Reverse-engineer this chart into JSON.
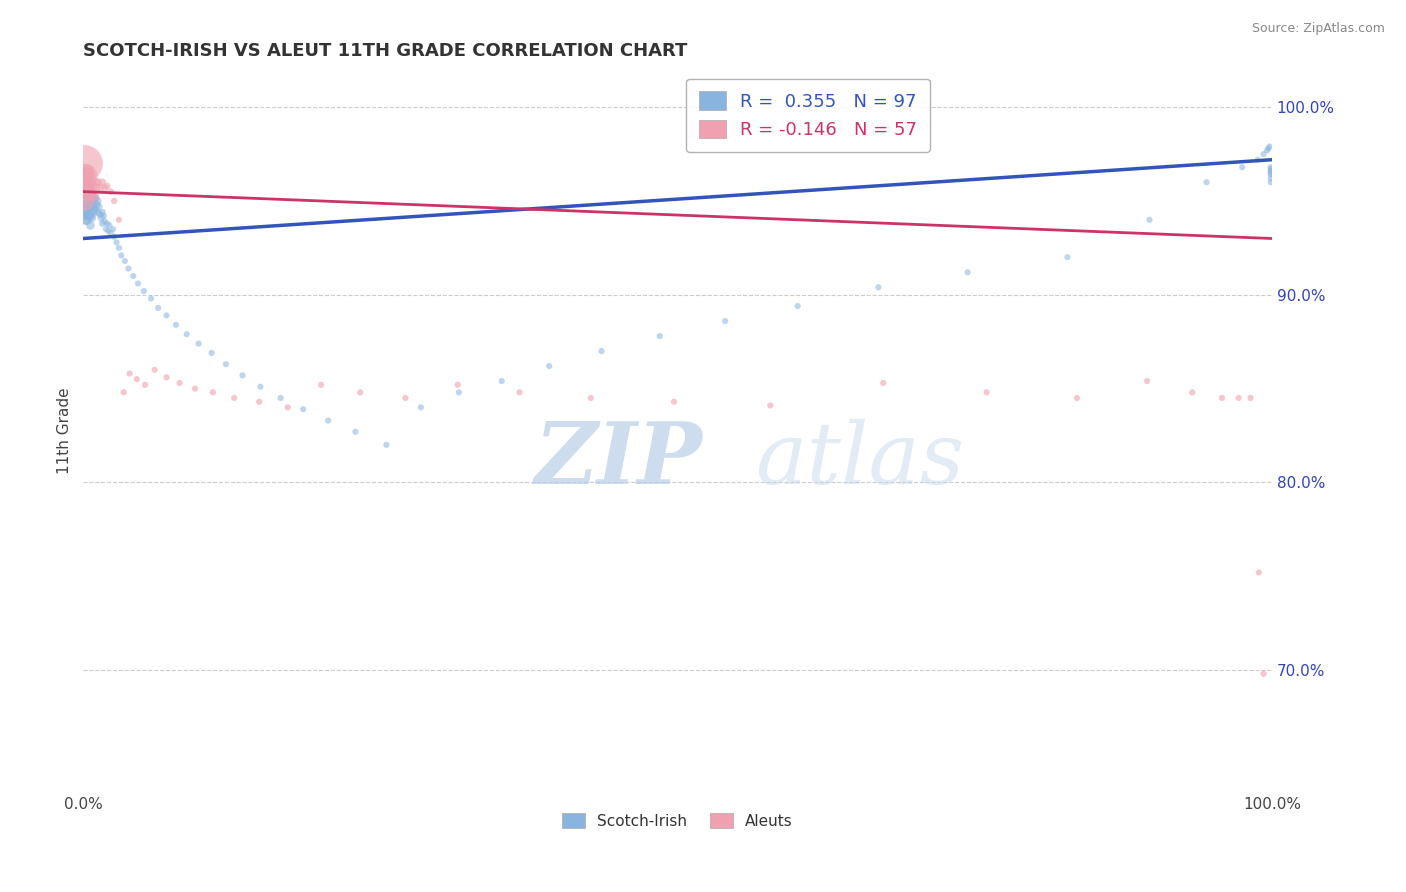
{
  "title": "SCOTCH-IRISH VS ALEUT 11TH GRADE CORRELATION CHART",
  "source_text": "Source: ZipAtlas.com",
  "ylabel": "11th Grade",
  "xlim": [
    0.0,
    1.0
  ],
  "ylim": [
    0.635,
    1.02
  ],
  "right_yticks": [
    0.7,
    0.8,
    0.9,
    1.0
  ],
  "right_yticklabels": [
    "70.0%",
    "80.0%",
    "90.0%",
    "100.0%"
  ],
  "xticks": [
    0.0,
    1.0
  ],
  "xticklabels": [
    "0.0%",
    "100.0%"
  ],
  "blue_color": "#8ab4e0",
  "pink_color": "#f0a0b0",
  "blue_line_color": "#3355bb",
  "pink_line_color": "#cc3366",
  "legend_blue_label": "R =  0.355   N = 97",
  "legend_pink_label": "R = -0.146   N = 57",
  "scotch_irish_label": "Scotch-Irish",
  "aleuts_label": "Aleuts",
  "watermark_zip": "ZIP",
  "watermark_atlas": "atlas",
  "blue_scatter_x": [
    0.001,
    0.001,
    0.001,
    0.002,
    0.002,
    0.002,
    0.002,
    0.003,
    0.003,
    0.003,
    0.003,
    0.004,
    0.004,
    0.004,
    0.004,
    0.005,
    0.005,
    0.005,
    0.006,
    0.006,
    0.006,
    0.006,
    0.007,
    0.007,
    0.007,
    0.008,
    0.008,
    0.009,
    0.009,
    0.01,
    0.01,
    0.011,
    0.012,
    0.012,
    0.013,
    0.014,
    0.015,
    0.016,
    0.016,
    0.017,
    0.018,
    0.019,
    0.02,
    0.021,
    0.022,
    0.023,
    0.025,
    0.026,
    0.028,
    0.03,
    0.032,
    0.035,
    0.038,
    0.042,
    0.046,
    0.051,
    0.057,
    0.063,
    0.07,
    0.078,
    0.087,
    0.097,
    0.108,
    0.12,
    0.134,
    0.149,
    0.166,
    0.185,
    0.206,
    0.229,
    0.255,
    0.284,
    0.316,
    0.352,
    0.392,
    0.436,
    0.485,
    0.54,
    0.601,
    0.669,
    0.744,
    0.828,
    0.897,
    0.945,
    0.975,
    0.988,
    0.993,
    0.996,
    0.997,
    0.998,
    0.999,
    0.999,
    0.999,
    0.999,
    0.999,
    0.999,
    0.999
  ],
  "blue_scatter_y": [
    0.956,
    0.95,
    0.944,
    0.955,
    0.95,
    0.945,
    0.94,
    0.955,
    0.95,
    0.945,
    0.94,
    0.958,
    0.952,
    0.948,
    0.942,
    0.955,
    0.95,
    0.943,
    0.954,
    0.948,
    0.942,
    0.937,
    0.953,
    0.947,
    0.941,
    0.95,
    0.944,
    0.951,
    0.945,
    0.952,
    0.946,
    0.948,
    0.95,
    0.944,
    0.947,
    0.943,
    0.941,
    0.944,
    0.938,
    0.942,
    0.939,
    0.935,
    0.938,
    0.934,
    0.937,
    0.933,
    0.935,
    0.931,
    0.928,
    0.925,
    0.921,
    0.918,
    0.914,
    0.91,
    0.906,
    0.902,
    0.898,
    0.893,
    0.889,
    0.884,
    0.879,
    0.874,
    0.869,
    0.863,
    0.857,
    0.851,
    0.845,
    0.839,
    0.833,
    0.827,
    0.82,
    0.84,
    0.848,
    0.854,
    0.862,
    0.87,
    0.878,
    0.886,
    0.894,
    0.904,
    0.912,
    0.92,
    0.94,
    0.96,
    0.968,
    0.972,
    0.975,
    0.977,
    0.978,
    0.979,
    0.96,
    0.962,
    0.964,
    0.965,
    0.966,
    0.967,
    0.968
  ],
  "blue_scatter_size": [
    150,
    120,
    90,
    80,
    70,
    60,
    55,
    70,
    65,
    60,
    55,
    65,
    60,
    55,
    50,
    60,
    55,
    50,
    55,
    50,
    45,
    40,
    50,
    45,
    40,
    45,
    40,
    40,
    35,
    38,
    33,
    35,
    33,
    30,
    30,
    28,
    28,
    26,
    24,
    24,
    22,
    20,
    20,
    20,
    20,
    20,
    20,
    20,
    20,
    20,
    20,
    20,
    20,
    20,
    20,
    20,
    20,
    20,
    20,
    20,
    20,
    20,
    20,
    20,
    20,
    20,
    20,
    20,
    20,
    20,
    20,
    20,
    20,
    20,
    20,
    20,
    20,
    20,
    20,
    20,
    20,
    20,
    20,
    20,
    20,
    20,
    20,
    20,
    20,
    20,
    20,
    20,
    20,
    20,
    20,
    20,
    20
  ],
  "pink_scatter_x": [
    0.001,
    0.001,
    0.001,
    0.002,
    0.002,
    0.002,
    0.003,
    0.003,
    0.004,
    0.004,
    0.005,
    0.005,
    0.006,
    0.006,
    0.007,
    0.008,
    0.009,
    0.01,
    0.011,
    0.012,
    0.014,
    0.016,
    0.018,
    0.02,
    0.023,
    0.026,
    0.03,
    0.034,
    0.039,
    0.045,
    0.052,
    0.06,
    0.07,
    0.081,
    0.094,
    0.109,
    0.127,
    0.148,
    0.172,
    0.2,
    0.233,
    0.271,
    0.315,
    0.367,
    0.427,
    0.497,
    0.578,
    0.673,
    0.76,
    0.836,
    0.895,
    0.933,
    0.958,
    0.972,
    0.982,
    0.989,
    0.993
  ],
  "pink_scatter_y": [
    0.97,
    0.963,
    0.95,
    0.965,
    0.958,
    0.952,
    0.962,
    0.956,
    0.965,
    0.958,
    0.963,
    0.956,
    0.96,
    0.953,
    0.958,
    0.955,
    0.952,
    0.96,
    0.957,
    0.96,
    0.957,
    0.96,
    0.957,
    0.958,
    0.955,
    0.95,
    0.94,
    0.848,
    0.858,
    0.855,
    0.852,
    0.86,
    0.856,
    0.853,
    0.85,
    0.848,
    0.845,
    0.843,
    0.84,
    0.852,
    0.848,
    0.845,
    0.852,
    0.848,
    0.845,
    0.843,
    0.841,
    0.853,
    0.848,
    0.845,
    0.854,
    0.848,
    0.845,
    0.845,
    0.845,
    0.752,
    0.698
  ],
  "pink_scatter_size": [
    700,
    350,
    200,
    150,
    100,
    80,
    80,
    70,
    70,
    60,
    60,
    55,
    55,
    50,
    50,
    45,
    42,
    40,
    38,
    35,
    32,
    30,
    28,
    25,
    23,
    22,
    20,
    20,
    20,
    20,
    20,
    20,
    20,
    20,
    20,
    20,
    20,
    20,
    20,
    20,
    20,
    20,
    20,
    20,
    20,
    20,
    20,
    20,
    20,
    20,
    20,
    20,
    20,
    20,
    20,
    20,
    20
  ],
  "blue_trendline_x": [
    0.0,
    1.0
  ],
  "blue_trendline_y": [
    0.93,
    0.972
  ],
  "pink_trendline_x": [
    0.0,
    1.0
  ],
  "pink_trendline_y": [
    0.955,
    0.93
  ]
}
